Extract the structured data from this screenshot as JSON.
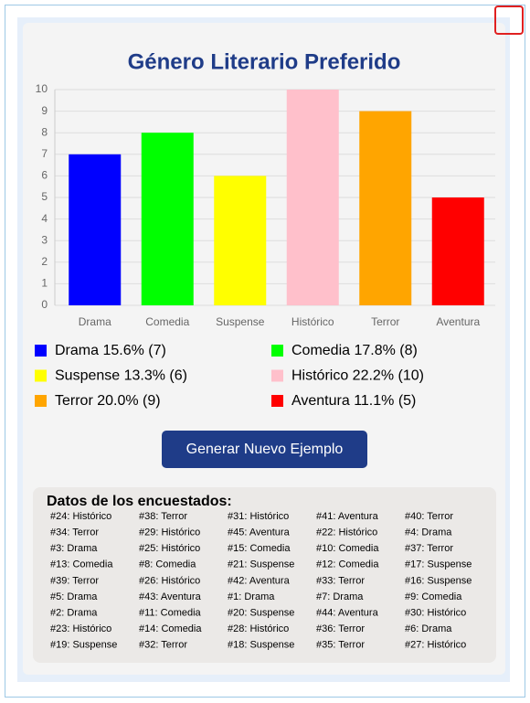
{
  "chart_data": {
    "type": "bar",
    "title": "Género Literario Preferido",
    "categories": [
      "Drama",
      "Comedia",
      "Suspense",
      "Histórico",
      "Terror",
      "Aventura"
    ],
    "values": [
      7,
      8,
      6,
      10,
      9,
      5
    ],
    "colors": [
      "#0000ff",
      "#00ff00",
      "#ffff00",
      "#ffc0cb",
      "#ffa500",
      "#ff0000"
    ],
    "legend_labels": [
      "Drama 15.6% (7)",
      "Comedia 17.8% (8)",
      "Suspense 13.3% (6)",
      "Histórico 22.2% (10)",
      "Terror 20.0% (9)",
      "Aventura 11.1% (5)"
    ],
    "ylim": [
      0,
      10
    ],
    "yticks": [
      0,
      1,
      2,
      3,
      4,
      5,
      6,
      7,
      8,
      9,
      10
    ],
    "grid": true
  },
  "button": "Generar Nuevo Ejemplo",
  "respondents": {
    "title": "Datos de los encuestados:",
    "items": [
      "#24: Histórico",
      "#38: Terror",
      "#31: Histórico",
      "#41: Aventura",
      "#40: Terror",
      "#34: Terror",
      "#29: Histórico",
      "#45: Aventura",
      "#22: Histórico",
      "#4: Drama",
      "#3: Drama",
      "#25: Histórico",
      "#15: Comedia",
      "#10: Comedia",
      "#37: Terror",
      "#13: Comedia",
      "#8: Comedia",
      "#21: Suspense",
      "#12: Comedia",
      "#17: Suspense",
      "#39: Terror",
      "#26: Histórico",
      "#42: Aventura",
      "#33: Terror",
      "#16: Suspense",
      "#5: Drama",
      "#43: Aventura",
      "#1: Drama",
      "#7: Drama",
      "#9: Comedia",
      "#2: Drama",
      "#11: Comedia",
      "#20: Suspense",
      "#44: Aventura",
      "#30: Histórico",
      "#23: Histórico",
      "#14: Comedia",
      "#28: Histórico",
      "#36: Terror",
      "#6: Drama",
      "#19: Suspense",
      "#32: Terror",
      "#18: Suspense",
      "#35: Terror",
      "#27: Histórico"
    ]
  }
}
